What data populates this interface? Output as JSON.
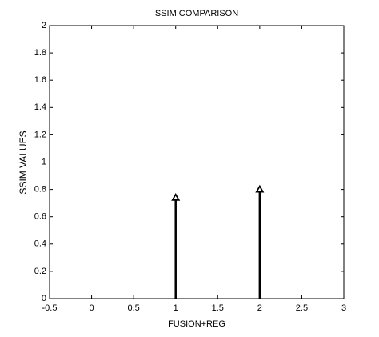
{
  "chart_data": {
    "type": "stem",
    "title": "SSIM COMPARISON",
    "x_label": "FUSION+REG",
    "y_label": "SSIM VALUES",
    "x": [
      1,
      2
    ],
    "values": [
      0.74,
      0.8
    ],
    "color": "#000000",
    "xlim": [
      -0.5,
      3
    ],
    "xticks": [
      -0.5,
      0,
      0.5,
      1,
      1.5,
      2,
      2.5,
      3
    ],
    "ylim": [
      0,
      2
    ],
    "yticks": [
      0,
      0.2,
      0.4,
      0.6,
      0.8,
      1,
      1.2,
      1.4,
      1.6,
      1.8,
      2
    ]
  }
}
